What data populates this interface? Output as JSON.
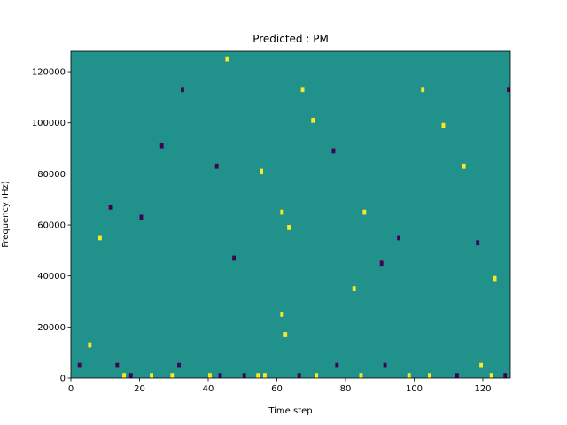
{
  "chart_data": {
    "type": "heatmap",
    "title": "Predicted : PM",
    "xlabel": "Time step",
    "ylabel": "Frequency (Hz)",
    "xlim": [
      0,
      128
    ],
    "ylim": [
      0,
      128000
    ],
    "x_ticks": [
      0,
      20,
      40,
      60,
      80,
      100,
      120
    ],
    "y_ticks": [
      0,
      20000,
      40000,
      60000,
      80000,
      100000,
      120000
    ],
    "x_tick_labels": [
      "0",
      "20",
      "40",
      "60",
      "80",
      "100",
      "120"
    ],
    "y_tick_labels": [
      "0",
      "20000",
      "40000",
      "60000",
      "80000",
      "100000",
      "120000"
    ],
    "value_levels": {
      "background": 0,
      "low": -1,
      "high": 1
    },
    "colors": {
      "background": "#21918c",
      "low": "#440154",
      "high": "#fde725"
    },
    "grid": false,
    "legend": "none",
    "cells": [
      {
        "t": 2,
        "f": 4000,
        "v": -1
      },
      {
        "t": 5,
        "f": 12000,
        "v": 1
      },
      {
        "t": 13,
        "f": 4000,
        "v": -1
      },
      {
        "t": 15,
        "f": 0,
        "v": 1
      },
      {
        "t": 17,
        "f": 0,
        "v": -1
      },
      {
        "t": 23,
        "f": 0,
        "v": 1
      },
      {
        "t": 29,
        "f": 0,
        "v": 1
      },
      {
        "t": 31,
        "f": 4000,
        "v": -1
      },
      {
        "t": 40,
        "f": 0,
        "v": 1
      },
      {
        "t": 43,
        "f": 0,
        "v": -1
      },
      {
        "t": 50,
        "f": 0,
        "v": -1
      },
      {
        "t": 54,
        "f": 0,
        "v": 1
      },
      {
        "t": 56,
        "f": 0,
        "v": 1
      },
      {
        "t": 62,
        "f": 16000,
        "v": 1
      },
      {
        "t": 61,
        "f": 24000,
        "v": 1
      },
      {
        "t": 66,
        "f": 0,
        "v": -1
      },
      {
        "t": 71,
        "f": 0,
        "v": 1
      },
      {
        "t": 77,
        "f": 4000,
        "v": -1
      },
      {
        "t": 84,
        "f": 0,
        "v": 1
      },
      {
        "t": 91,
        "f": 4000,
        "v": -1
      },
      {
        "t": 98,
        "f": 0,
        "v": 1
      },
      {
        "t": 104,
        "f": 0,
        "v": 1
      },
      {
        "t": 112,
        "f": 0,
        "v": -1
      },
      {
        "t": 119,
        "f": 4000,
        "v": 1
      },
      {
        "t": 122,
        "f": 0,
        "v": 1
      },
      {
        "t": 126,
        "f": 0,
        "v": -1
      },
      {
        "t": 8,
        "f": 54000,
        "v": 1
      },
      {
        "t": 11,
        "f": 66000,
        "v": -1
      },
      {
        "t": 20,
        "f": 62000,
        "v": -1
      },
      {
        "t": 26,
        "f": 90000,
        "v": -1
      },
      {
        "t": 32,
        "f": 112000,
        "v": -1
      },
      {
        "t": 42,
        "f": 82000,
        "v": -1
      },
      {
        "t": 45,
        "f": 124000,
        "v": 1
      },
      {
        "t": 47,
        "f": 46000,
        "v": -1
      },
      {
        "t": 55,
        "f": 80000,
        "v": 1
      },
      {
        "t": 61,
        "f": 64000,
        "v": 1
      },
      {
        "t": 63,
        "f": 58000,
        "v": 1
      },
      {
        "t": 67,
        "f": 112000,
        "v": 1
      },
      {
        "t": 70,
        "f": 100000,
        "v": 1
      },
      {
        "t": 76,
        "f": 88000,
        "v": -1
      },
      {
        "t": 82,
        "f": 34000,
        "v": 1
      },
      {
        "t": 85,
        "f": 64000,
        "v": 1
      },
      {
        "t": 90,
        "f": 44000,
        "v": -1
      },
      {
        "t": 95,
        "f": 54000,
        "v": -1
      },
      {
        "t": 102,
        "f": 112000,
        "v": 1
      },
      {
        "t": 108,
        "f": 98000,
        "v": 1
      },
      {
        "t": 114,
        "f": 82000,
        "v": 1
      },
      {
        "t": 118,
        "f": 52000,
        "v": -1
      },
      {
        "t": 123,
        "f": 38000,
        "v": 1
      },
      {
        "t": 127,
        "f": 112000,
        "v": -1
      }
    ]
  }
}
